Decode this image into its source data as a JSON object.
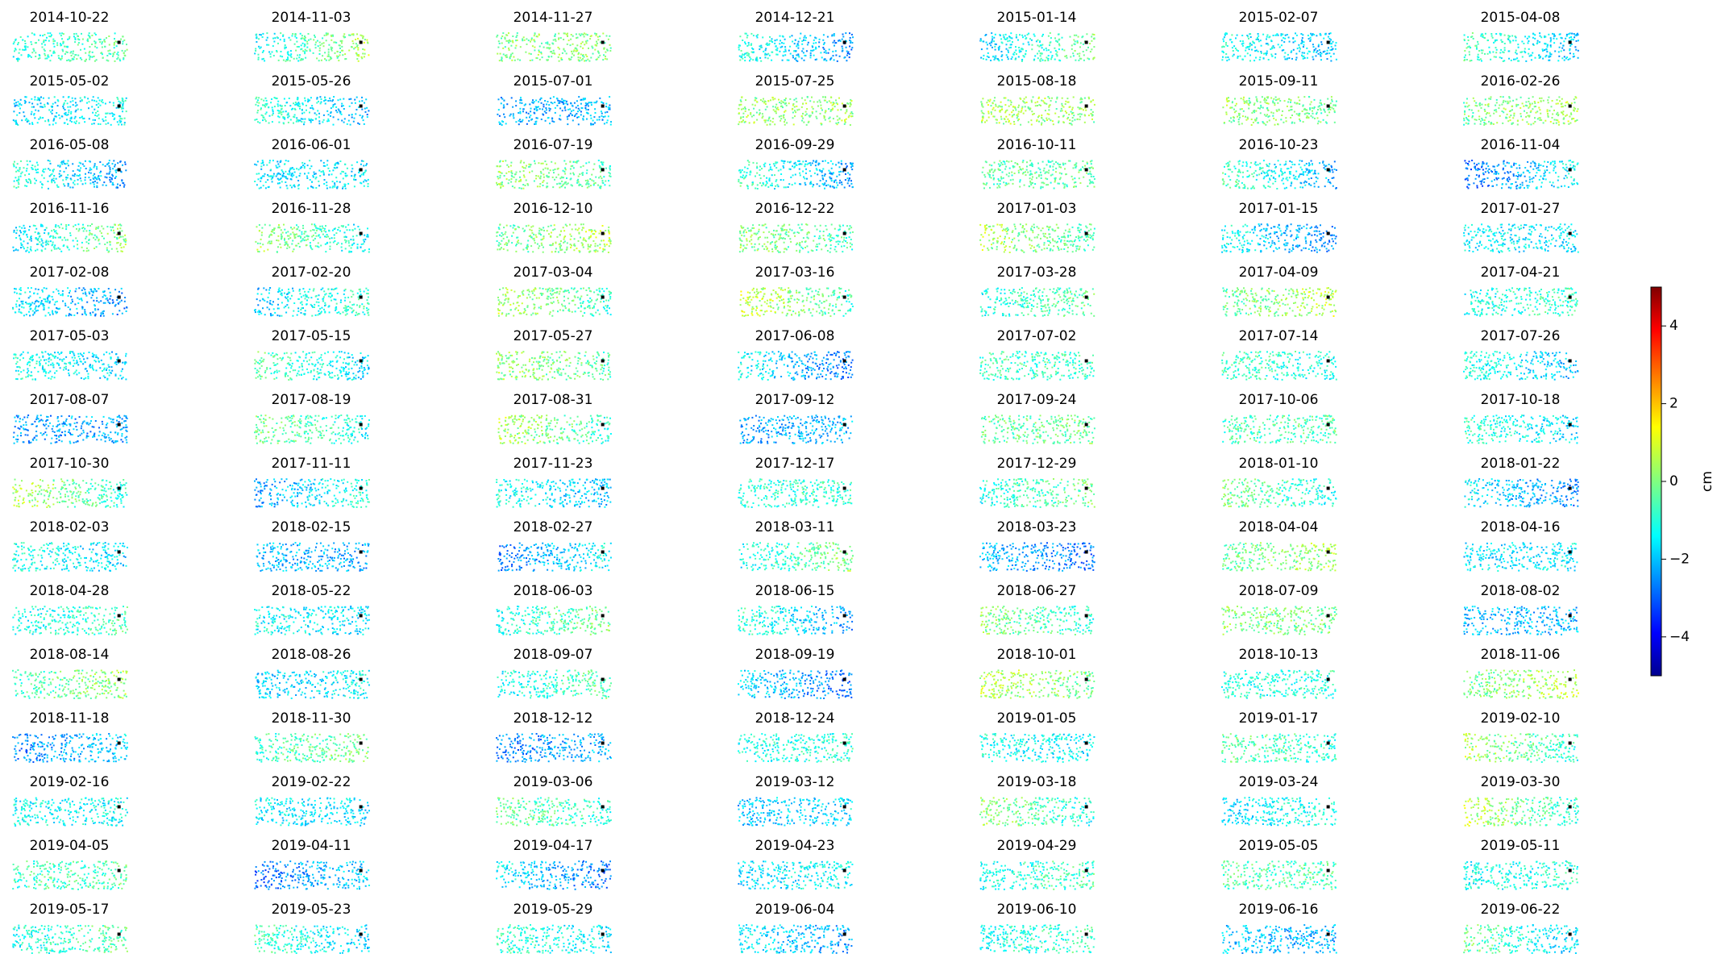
{
  "chart_data": {
    "type": "image-grid",
    "panels": [
      "2014-10-22",
      "2014-11-03",
      "2014-11-27",
      "2014-12-21",
      "2015-01-14",
      "2015-02-07",
      "2015-04-08",
      "2015-05-02",
      "2015-05-26",
      "2015-07-01",
      "2015-07-25",
      "2015-08-18",
      "2015-09-11",
      "2016-02-26",
      "2016-05-08",
      "2016-06-01",
      "2016-07-19",
      "2016-09-29",
      "2016-10-11",
      "2016-10-23",
      "2016-11-04",
      "2016-11-16",
      "2016-11-28",
      "2016-12-10",
      "2016-12-22",
      "2017-01-03",
      "2017-01-15",
      "2017-01-27",
      "2017-02-08",
      "2017-02-20",
      "2017-03-04",
      "2017-03-16",
      "2017-03-28",
      "2017-04-09",
      "2017-04-21",
      "2017-05-03",
      "2017-05-15",
      "2017-05-27",
      "2017-06-08",
      "2017-07-02",
      "2017-07-14",
      "2017-07-26",
      "2017-08-07",
      "2017-08-19",
      "2017-08-31",
      "2017-09-12",
      "2017-09-24",
      "2017-10-06",
      "2017-10-18",
      "2017-10-30",
      "2017-11-11",
      "2017-11-23",
      "2017-12-17",
      "2017-12-29",
      "2018-01-10",
      "2018-01-22",
      "2018-02-03",
      "2018-02-15",
      "2018-02-27",
      "2018-03-11",
      "2018-03-23",
      "2018-04-04",
      "2018-04-16",
      "2018-04-28",
      "2018-05-22",
      "2018-06-03",
      "2018-06-15",
      "2018-06-27",
      "2018-07-09",
      "2018-08-02",
      "2018-08-14",
      "2018-08-26",
      "2018-09-07",
      "2018-09-19",
      "2018-10-01",
      "2018-10-13",
      "2018-11-06",
      "2018-11-18",
      "2018-11-30",
      "2018-12-12",
      "2018-12-24",
      "2019-01-05",
      "2019-01-17",
      "2019-02-10",
      "2019-02-16",
      "2019-02-22",
      "2019-03-06",
      "2019-03-12",
      "2019-03-18",
      "2019-03-24",
      "2019-03-30",
      "2019-04-05",
      "2019-04-11",
      "2019-04-17",
      "2019-04-23",
      "2019-04-29",
      "2019-05-05",
      "2019-05-11",
      "2019-05-17",
      "2019-05-23",
      "2019-05-29",
      "2019-06-04",
      "2019-06-10",
      "2019-06-16",
      "2019-06-22"
    ],
    "colorbar": {
      "label": "cm",
      "ylim": [
        -5,
        5
      ],
      "yticks": [
        {
          "value": -4,
          "label": "−4"
        },
        {
          "value": -2,
          "label": "−2"
        },
        0,
        2,
        4
      ]
    }
  }
}
